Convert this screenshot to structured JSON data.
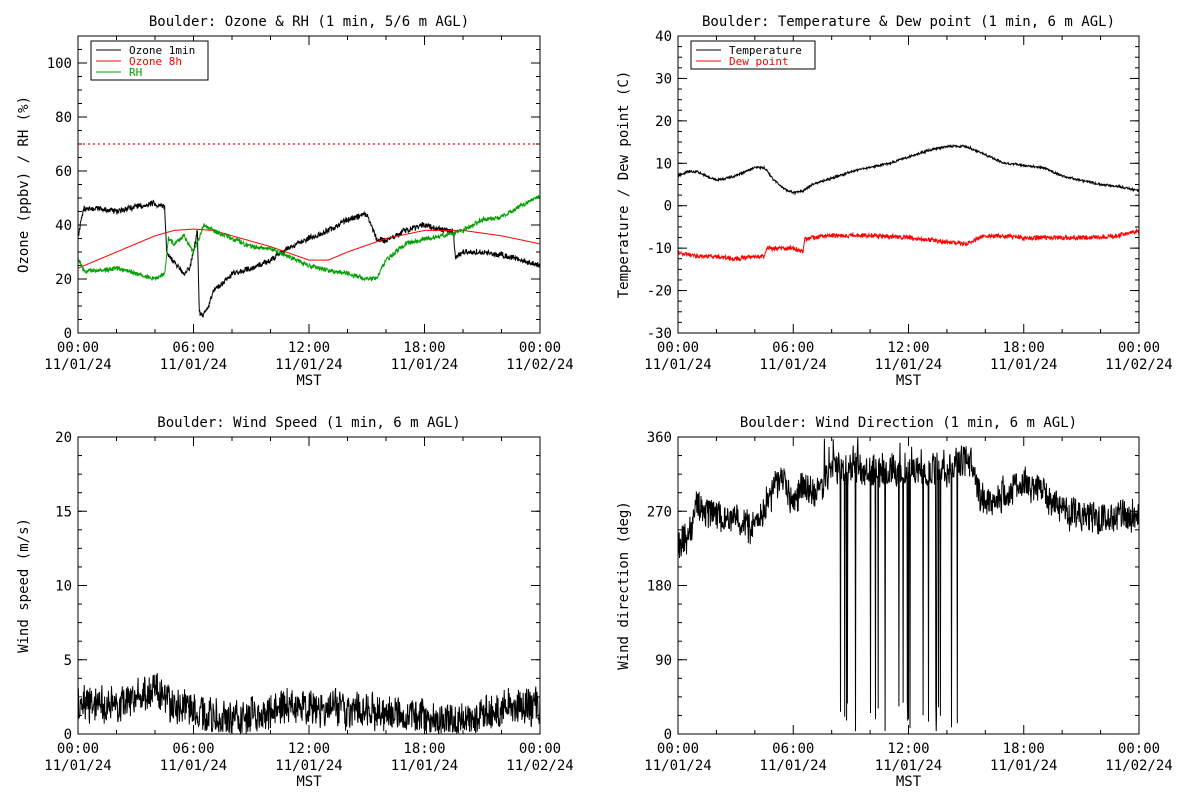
{
  "chart_data": [
    {
      "type": "line",
      "title": "Boulder: Ozone & RH (1 min, 5/6 m AGL)",
      "xlabel": "MST",
      "ylabel": "Ozone (ppbv) / RH (%)",
      "x_range_hours": [
        0,
        24
      ],
      "ylim": [
        0,
        110
      ],
      "yticks": [
        0,
        20,
        40,
        60,
        80,
        100
      ],
      "xtick_times": [
        "00:00",
        "06:00",
        "12:00",
        "18:00",
        "00:00"
      ],
      "xtick_dates": [
        "11/01/24",
        "11/01/24",
        "11/01/24",
        "11/01/24",
        "11/02/24"
      ],
      "legend_position": "top-left",
      "reference_line": {
        "value": 70,
        "color": "#ff0000",
        "style": "dotted"
      },
      "series": [
        {
          "name": "Ozone 1min",
          "color": "#000000",
          "noise": 1.0,
          "x": [
            0,
            0.3,
            1,
            2,
            3,
            4,
            4.5,
            4.6,
            5,
            5.5,
            5.8,
            6,
            6.2,
            6.3,
            6.5,
            6.8,
            7,
            8,
            9,
            10,
            11,
            12,
            13,
            14,
            15,
            15.5,
            16,
            17,
            18,
            19,
            19.5,
            19.6,
            20,
            21,
            22,
            23,
            24
          ],
          "y": [
            36,
            46,
            46,
            45,
            47,
            48,
            47,
            30,
            26,
            22,
            24,
            30,
            38,
            8,
            6,
            10,
            15,
            22,
            24,
            27,
            32,
            35,
            38,
            42,
            44,
            35,
            34,
            38,
            40,
            38,
            38,
            28,
            30,
            30,
            29,
            27,
            25
          ]
        },
        {
          "name": "Ozone 8h",
          "color": "#ff0000",
          "noise": 0,
          "x": [
            0,
            2,
            4,
            5,
            6,
            7,
            8,
            10,
            12,
            13,
            14,
            16,
            18,
            19,
            20,
            22,
            24
          ],
          "y": [
            24,
            30,
            36,
            38,
            38.5,
            38,
            36,
            32,
            27,
            27,
            30,
            35,
            38,
            38,
            38,
            36,
            33
          ]
        },
        {
          "name": "RH",
          "color": "#00a000",
          "noise": 0.8,
          "x": [
            0,
            0.3,
            1,
            2,
            3,
            4,
            4.5,
            4.7,
            5,
            5.5,
            6,
            6.3,
            6.5,
            7,
            8,
            9,
            10,
            11,
            12,
            13,
            14,
            15,
            15.5,
            16,
            17,
            18,
            19,
            20,
            21,
            22,
            23,
            24
          ],
          "y": [
            28,
            23,
            23,
            24,
            22,
            20,
            22,
            35,
            33,
            36,
            30,
            35,
            40,
            38,
            35,
            32,
            31,
            28,
            25,
            23,
            22,
            20,
            20,
            27,
            33,
            35,
            36,
            38,
            42,
            43,
            47,
            51
          ]
        }
      ]
    },
    {
      "type": "line",
      "title": "Boulder: Temperature & Dew point (1 min, 6 m AGL)",
      "xlabel": "MST",
      "ylabel": "Temperature / Dew point (C)",
      "x_range_hours": [
        0,
        24
      ],
      "ylim": [
        -30,
        40
      ],
      "yticks": [
        -30,
        -20,
        -10,
        0,
        10,
        20,
        30,
        40
      ],
      "xtick_times": [
        "00:00",
        "06:00",
        "12:00",
        "18:00",
        "00:00"
      ],
      "xtick_dates": [
        "11/01/24",
        "11/01/24",
        "11/01/24",
        "11/01/24",
        "11/02/24"
      ],
      "legend_position": "top-left",
      "series": [
        {
          "name": "Temperature",
          "color": "#000000",
          "noise": 0.25,
          "x": [
            0,
            0.5,
            1,
            1.5,
            2,
            3,
            4,
            4.5,
            5,
            5.5,
            6,
            6.5,
            7,
            8,
            9,
            10,
            11,
            12,
            13,
            14,
            15,
            16,
            17,
            18,
            19,
            20,
            21,
            22,
            23,
            24
          ],
          "y": [
            7,
            8,
            8,
            7,
            6,
            7,
            9,
            9,
            6,
            4,
            3,
            3.5,
            5,
            6.5,
            8,
            9,
            10,
            11.5,
            13,
            14,
            14,
            12,
            10,
            9.5,
            9,
            7,
            6,
            5,
            4.5,
            3.5
          ]
        },
        {
          "name": "Dew point",
          "color": "#ff0000",
          "noise": 0.5,
          "x": [
            0,
            1,
            2,
            3,
            4,
            4.5,
            4.6,
            5,
            6,
            6.5,
            6.6,
            7,
            8,
            10,
            12,
            14,
            15,
            15.5,
            16,
            18,
            20,
            22,
            23,
            24
          ],
          "y": [
            -11,
            -12,
            -12,
            -12.5,
            -12,
            -12,
            -10,
            -10,
            -10,
            -11,
            -8,
            -7.5,
            -7,
            -7,
            -7.5,
            -8.5,
            -9,
            -8,
            -7,
            -7.5,
            -7.5,
            -7.5,
            -7,
            -6
          ]
        }
      ]
    },
    {
      "type": "line",
      "title": "Boulder: Wind Speed (1 min, 6 m AGL)",
      "xlabel": "MST",
      "ylabel": "Wind speed (m/s)",
      "x_range_hours": [
        0,
        24
      ],
      "ylim": [
        0,
        20
      ],
      "yticks": [
        0,
        5,
        10,
        15,
        20
      ],
      "xtick_times": [
        "00:00",
        "06:00",
        "12:00",
        "18:00",
        "00:00"
      ],
      "xtick_dates": [
        "11/01/24",
        "11/01/24",
        "11/01/24",
        "11/01/24",
        "11/02/24"
      ],
      "series": [
        {
          "name": "",
          "color": "#000000",
          "noise": 1.1,
          "floor": 0,
          "x": [
            0,
            1,
            2,
            3,
            4,
            4.5,
            5,
            6,
            7,
            8,
            9,
            10,
            11,
            12,
            13,
            14,
            15,
            16,
            17,
            18,
            19,
            20,
            21,
            22,
            23,
            24
          ],
          "y": [
            2.2,
            2.0,
            1.8,
            2.5,
            3.0,
            2.5,
            1.8,
            1.5,
            1.2,
            0.8,
            1.2,
            1.5,
            1.8,
            1.8,
            1.8,
            1.7,
            1.6,
            1.4,
            1.3,
            1.1,
            0.9,
            0.8,
            1.3,
            1.6,
            1.8,
            1.9
          ]
        }
      ]
    },
    {
      "type": "line",
      "title": "Boulder: Wind Direction (1 min, 6 m AGL)",
      "xlabel": "MST",
      "ylabel": "Wind direction (deg)",
      "x_range_hours": [
        0,
        24
      ],
      "ylim": [
        0,
        360
      ],
      "yticks": [
        0,
        90,
        180,
        270,
        360
      ],
      "xtick_times": [
        "00:00",
        "06:00",
        "12:00",
        "18:00",
        "00:00"
      ],
      "xtick_dates": [
        "11/01/24",
        "11/01/24",
        "11/01/24",
        "11/01/24",
        "11/02/24"
      ],
      "series": [
        {
          "name": "",
          "color": "#000000",
          "noise": 18,
          "floor": 0,
          "ceil": 360,
          "wrap_start": 7.5,
          "wrap_end": 15.3,
          "x": [
            0,
            0.5,
            1,
            1.5,
            2,
            3,
            4,
            4.5,
            5,
            5.5,
            6,
            6.5,
            7,
            7.5,
            8,
            10,
            12,
            14,
            15,
            15.3,
            15.5,
            16,
            17,
            17.5,
            18,
            19,
            19.5,
            20,
            21,
            22,
            23,
            24
          ],
          "y": [
            230,
            240,
            280,
            270,
            265,
            260,
            250,
            270,
            300,
            310,
            280,
            300,
            290,
            300,
            320,
            320,
            320,
            320,
            330,
            330,
            300,
            280,
            290,
            300,
            305,
            295,
            280,
            270,
            265,
            260,
            265,
            265
          ]
        }
      ]
    }
  ]
}
